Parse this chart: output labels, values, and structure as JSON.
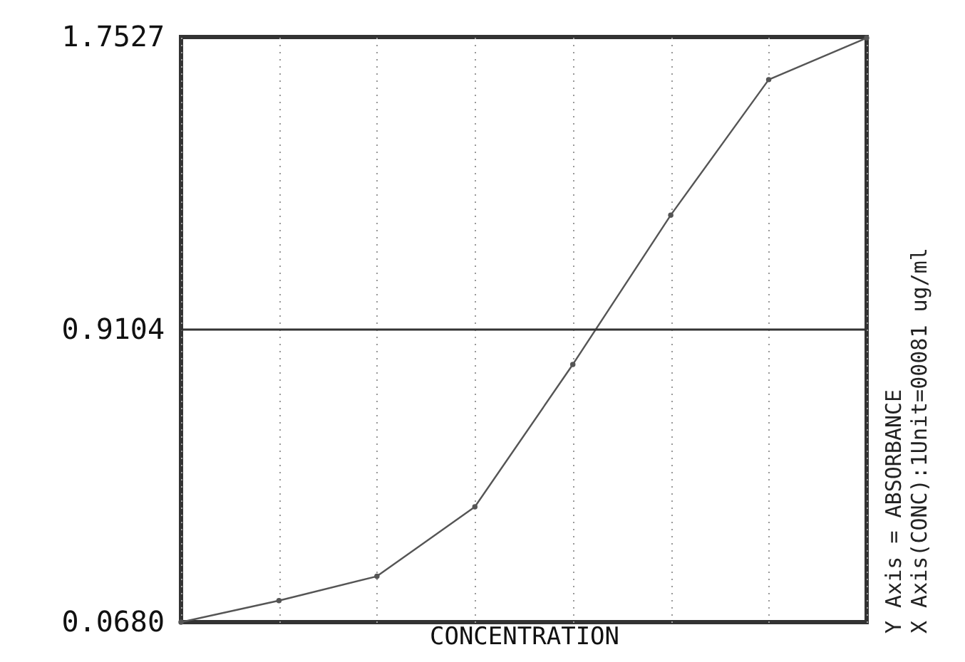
{
  "chart_data": {
    "type": "line",
    "xlabel": "CONCENTRATION",
    "categories": [
      null,
      null,
      null,
      null,
      null,
      null,
      null,
      null
    ],
    "series": [
      {
        "color": "#555555",
        "values": [
          0.068,
          0.13,
          0.2,
          0.4,
          0.81,
          1.24,
          1.63,
          1.75
        ]
      }
    ],
    "ylim": [
      0.068,
      1.7527
    ],
    "yticks": [
      {
        "value": 0.068,
        "label": "0.0680"
      },
      0.9104,
      1.7527
    ],
    "ref_lines": [
      {
        "axis": "y",
        "value": 0.9104,
        "color": "#333333"
      }
    ],
    "grid": "x",
    "marker": "circle",
    "line_style": "solid",
    "annotations": [
      "Y Axis = ABSORBANCE",
      "X Axis(CONC):1Unit=00081 ug/ml"
    ]
  }
}
